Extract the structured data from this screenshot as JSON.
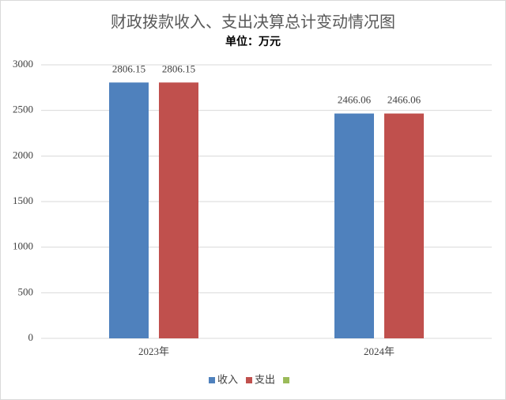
{
  "chart_data": {
    "type": "bar",
    "title": "财政拨款收入、支出决算总计变动情况图",
    "subtitle": "单位：万元",
    "categories": [
      "2023年",
      "2024年"
    ],
    "series": [
      {
        "name": "收入",
        "color": "#4f81bd",
        "values": [
          2806.15,
          2466.06
        ]
      },
      {
        "name": "支出",
        "color": "#c0504d",
        "values": [
          2806.15,
          2466.06
        ]
      },
      {
        "color": "#9bbb59",
        "values": [
          null,
          null
        ]
      }
    ],
    "ylim": [
      0,
      3000
    ],
    "yticks": [
      0,
      500,
      1000,
      1500,
      2000,
      2500,
      3000
    ],
    "grid": true,
    "legend": "bottom"
  }
}
